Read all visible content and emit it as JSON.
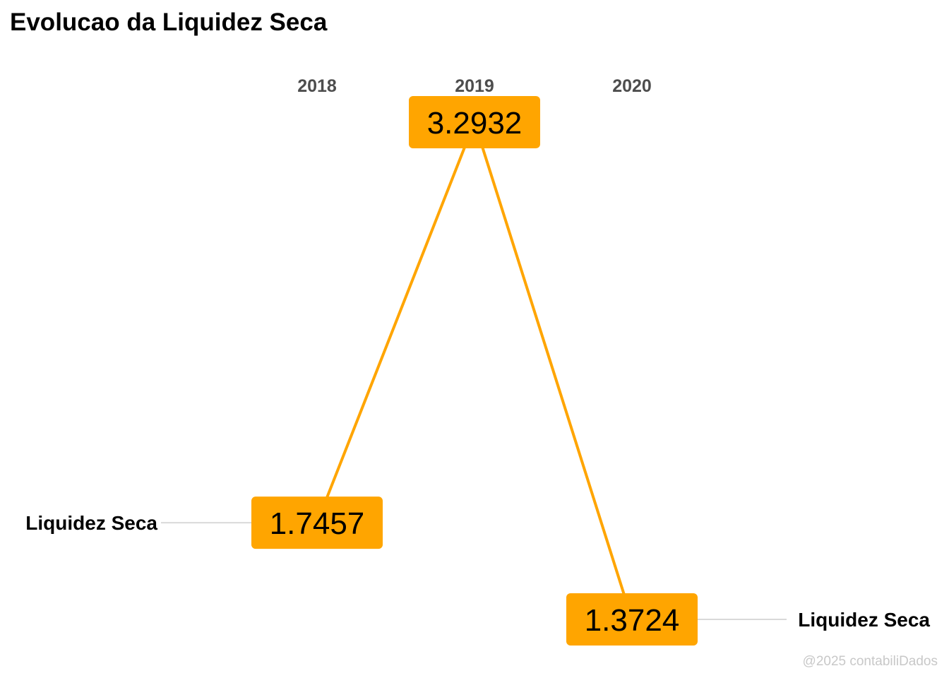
{
  "chart_data": {
    "type": "line",
    "title": "Evolucao da Liquidez Seca",
    "x": [
      "2018",
      "2019",
      "2020"
    ],
    "series": [
      {
        "name": "Liquidez Seca",
        "values": [
          1.7457,
          3.2932,
          1.3724
        ]
      }
    ],
    "value_labels": [
      "1.7457",
      "3.2932",
      "1.3724"
    ],
    "left_label": "Liquidez Seca",
    "right_label": "Liquidez Seca",
    "caption": "@2025 contabiliDados",
    "colors": {
      "line": "#FFA500",
      "label_fill": "#FFA500",
      "leader": "#d9d9d9",
      "year_text": "#4d4d4d",
      "caption_text": "#c8c8c8"
    },
    "grid": false,
    "legend": "none"
  }
}
